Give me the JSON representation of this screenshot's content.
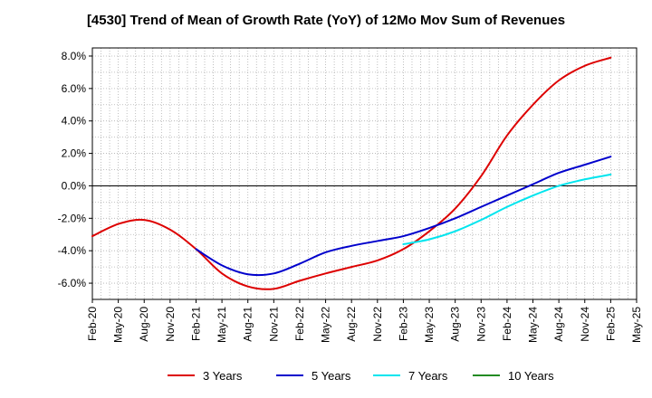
{
  "chart_data": {
    "type": "line",
    "title": "[4530]  Trend of Mean of Growth Rate (YoY) of 12Mo Mov Sum of Revenues",
    "xlabel": "",
    "ylabel": "",
    "ylim": [
      -7.0,
      8.5
    ],
    "yticks": [
      -6.0,
      -4.0,
      -2.0,
      0.0,
      2.0,
      4.0,
      6.0,
      8.0
    ],
    "ytick_labels": [
      "-6.0%",
      "-4.0%",
      "-2.0%",
      "0.0%",
      "2.0%",
      "4.0%",
      "6.0%",
      "8.0%"
    ],
    "x_tick_labels": [
      "Feb-20",
      "May-20",
      "Aug-20",
      "Nov-20",
      "Feb-21",
      "May-21",
      "Aug-21",
      "Nov-21",
      "Feb-22",
      "May-22",
      "Aug-22",
      "Nov-22",
      "Feb-23",
      "May-23",
      "Aug-23",
      "Nov-23",
      "Feb-24",
      "May-24",
      "Aug-24",
      "Nov-24",
      "Feb-25",
      "May-25"
    ],
    "x_unit": "months since Feb-20",
    "xlim": [
      0,
      63
    ],
    "grid": true,
    "legend_position": "bottom",
    "series": [
      {
        "name": "3 Years",
        "color": "#dd0000",
        "x": [
          0,
          3,
          6,
          9,
          12,
          15,
          18,
          21,
          24,
          27,
          30,
          33,
          36,
          39,
          42,
          45,
          48,
          51,
          54,
          57,
          60
        ],
        "values": [
          -3.1,
          -2.35,
          -2.1,
          -2.7,
          -3.9,
          -5.4,
          -6.2,
          -6.35,
          -5.85,
          -5.4,
          -5.0,
          -4.6,
          -3.9,
          -2.8,
          -1.4,
          0.6,
          3.1,
          5.0,
          6.5,
          7.4,
          7.9
        ]
      },
      {
        "name": "5 Years",
        "color": "#0000cc",
        "x": [
          12,
          15,
          18,
          21,
          24,
          27,
          30,
          33,
          36,
          39,
          42,
          45,
          48,
          51,
          54,
          57,
          60
        ],
        "values": [
          -3.9,
          -4.9,
          -5.45,
          -5.4,
          -4.8,
          -4.1,
          -3.7,
          -3.4,
          -3.1,
          -2.6,
          -2.0,
          -1.3,
          -0.6,
          0.1,
          0.8,
          1.3,
          1.8
        ]
      },
      {
        "name": "7 Years",
        "color": "#00e5ee",
        "x": [
          36,
          39,
          42,
          45,
          48,
          51,
          54,
          57,
          60
        ],
        "values": [
          -3.6,
          -3.3,
          -2.8,
          -2.1,
          -1.3,
          -0.6,
          0.0,
          0.4,
          0.7
        ]
      },
      {
        "name": "10 Years",
        "color": "#228b22",
        "x": [],
        "values": []
      }
    ]
  }
}
